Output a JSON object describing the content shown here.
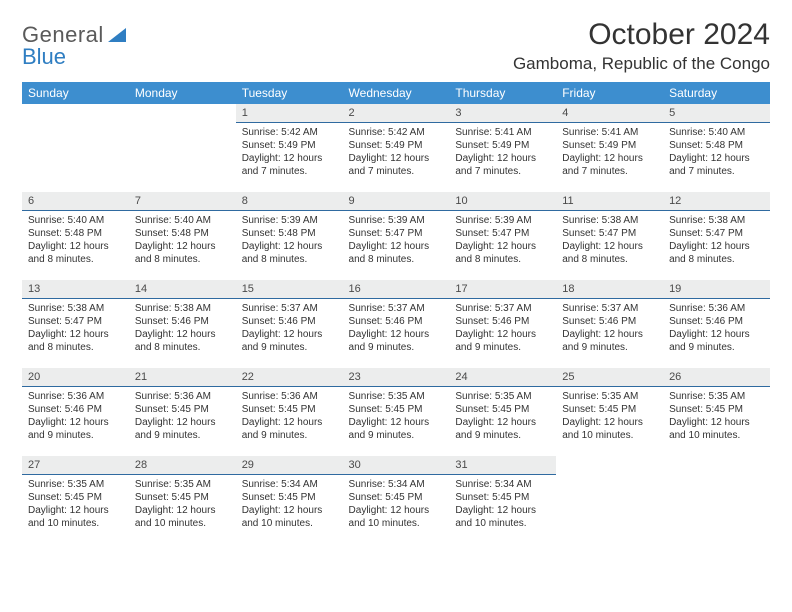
{
  "logo": {
    "line1": "General",
    "line2": "Blue"
  },
  "title": "October 2024",
  "location": "Gamboma, Republic of the Congo",
  "colors": {
    "header_bg": "#3d8ecf",
    "header_text": "#ffffff",
    "daynum_bg": "#eceded",
    "daynum_border": "#2f6aa0",
    "logo_gray": "#5a5a5a",
    "logo_blue": "#2f7ec2"
  },
  "weekdays": [
    "Sunday",
    "Monday",
    "Tuesday",
    "Wednesday",
    "Thursday",
    "Friday",
    "Saturday"
  ],
  "weeks": [
    [
      null,
      null,
      {
        "n": "1",
        "sr": "5:42 AM",
        "ss": "5:49 PM",
        "dl": "12 hours and 7 minutes."
      },
      {
        "n": "2",
        "sr": "5:42 AM",
        "ss": "5:49 PM",
        "dl": "12 hours and 7 minutes."
      },
      {
        "n": "3",
        "sr": "5:41 AM",
        "ss": "5:49 PM",
        "dl": "12 hours and 7 minutes."
      },
      {
        "n": "4",
        "sr": "5:41 AM",
        "ss": "5:49 PM",
        "dl": "12 hours and 7 minutes."
      },
      {
        "n": "5",
        "sr": "5:40 AM",
        "ss": "5:48 PM",
        "dl": "12 hours and 7 minutes."
      }
    ],
    [
      {
        "n": "6",
        "sr": "5:40 AM",
        "ss": "5:48 PM",
        "dl": "12 hours and 8 minutes."
      },
      {
        "n": "7",
        "sr": "5:40 AM",
        "ss": "5:48 PM",
        "dl": "12 hours and 8 minutes."
      },
      {
        "n": "8",
        "sr": "5:39 AM",
        "ss": "5:48 PM",
        "dl": "12 hours and 8 minutes."
      },
      {
        "n": "9",
        "sr": "5:39 AM",
        "ss": "5:47 PM",
        "dl": "12 hours and 8 minutes."
      },
      {
        "n": "10",
        "sr": "5:39 AM",
        "ss": "5:47 PM",
        "dl": "12 hours and 8 minutes."
      },
      {
        "n": "11",
        "sr": "5:38 AM",
        "ss": "5:47 PM",
        "dl": "12 hours and 8 minutes."
      },
      {
        "n": "12",
        "sr": "5:38 AM",
        "ss": "5:47 PM",
        "dl": "12 hours and 8 minutes."
      }
    ],
    [
      {
        "n": "13",
        "sr": "5:38 AM",
        "ss": "5:47 PM",
        "dl": "12 hours and 8 minutes."
      },
      {
        "n": "14",
        "sr": "5:38 AM",
        "ss": "5:46 PM",
        "dl": "12 hours and 8 minutes."
      },
      {
        "n": "15",
        "sr": "5:37 AM",
        "ss": "5:46 PM",
        "dl": "12 hours and 9 minutes."
      },
      {
        "n": "16",
        "sr": "5:37 AM",
        "ss": "5:46 PM",
        "dl": "12 hours and 9 minutes."
      },
      {
        "n": "17",
        "sr": "5:37 AM",
        "ss": "5:46 PM",
        "dl": "12 hours and 9 minutes."
      },
      {
        "n": "18",
        "sr": "5:37 AM",
        "ss": "5:46 PM",
        "dl": "12 hours and 9 minutes."
      },
      {
        "n": "19",
        "sr": "5:36 AM",
        "ss": "5:46 PM",
        "dl": "12 hours and 9 minutes."
      }
    ],
    [
      {
        "n": "20",
        "sr": "5:36 AM",
        "ss": "5:46 PM",
        "dl": "12 hours and 9 minutes."
      },
      {
        "n": "21",
        "sr": "5:36 AM",
        "ss": "5:45 PM",
        "dl": "12 hours and 9 minutes."
      },
      {
        "n": "22",
        "sr": "5:36 AM",
        "ss": "5:45 PM",
        "dl": "12 hours and 9 minutes."
      },
      {
        "n": "23",
        "sr": "5:35 AM",
        "ss": "5:45 PM",
        "dl": "12 hours and 9 minutes."
      },
      {
        "n": "24",
        "sr": "5:35 AM",
        "ss": "5:45 PM",
        "dl": "12 hours and 9 minutes."
      },
      {
        "n": "25",
        "sr": "5:35 AM",
        "ss": "5:45 PM",
        "dl": "12 hours and 10 minutes."
      },
      {
        "n": "26",
        "sr": "5:35 AM",
        "ss": "5:45 PM",
        "dl": "12 hours and 10 minutes."
      }
    ],
    [
      {
        "n": "27",
        "sr": "5:35 AM",
        "ss": "5:45 PM",
        "dl": "12 hours and 10 minutes."
      },
      {
        "n": "28",
        "sr": "5:35 AM",
        "ss": "5:45 PM",
        "dl": "12 hours and 10 minutes."
      },
      {
        "n": "29",
        "sr": "5:34 AM",
        "ss": "5:45 PM",
        "dl": "12 hours and 10 minutes."
      },
      {
        "n": "30",
        "sr": "5:34 AM",
        "ss": "5:45 PM",
        "dl": "12 hours and 10 minutes."
      },
      {
        "n": "31",
        "sr": "5:34 AM",
        "ss": "5:45 PM",
        "dl": "12 hours and 10 minutes."
      },
      null,
      null
    ]
  ],
  "labels": {
    "sunrise": "Sunrise:",
    "sunset": "Sunset:",
    "daylight": "Daylight:"
  }
}
